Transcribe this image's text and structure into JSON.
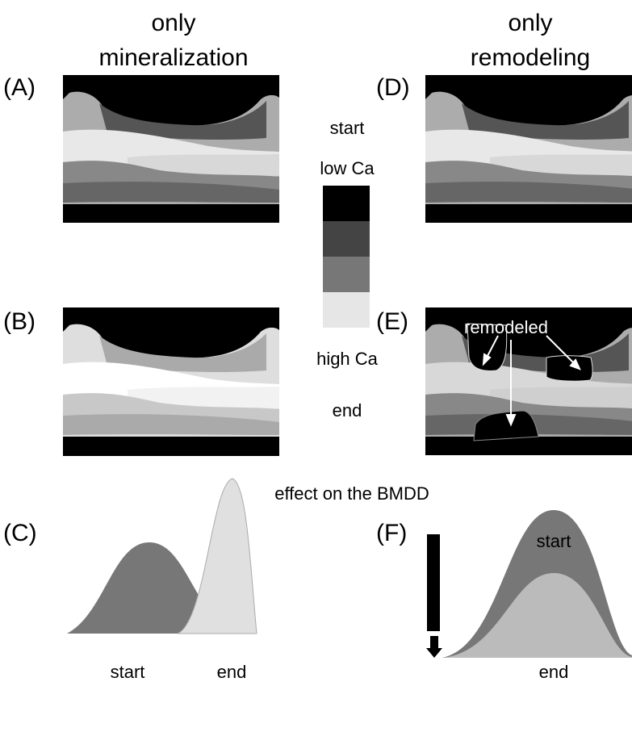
{
  "columns": [
    {
      "title": [
        "only",
        "mineralization"
      ]
    },
    {
      "title": [
        "only",
        "remodeling"
      ]
    }
  ],
  "panels": {
    "A": "(A)",
    "B": "(B)",
    "C": "(C)",
    "D": "(D)",
    "E": "(E)",
    "F": "(F)"
  },
  "legend": {
    "top": [
      "start",
      "low Ca"
    ],
    "bottom": [
      "high Ca",
      "end"
    ]
  },
  "annotation": "remodeled",
  "section_title": "effect on the BMDD",
  "plot_c": {
    "labels": [
      "start",
      "end"
    ]
  },
  "plot_f": {
    "top_label": "start",
    "bottom_label": "end"
  }
}
